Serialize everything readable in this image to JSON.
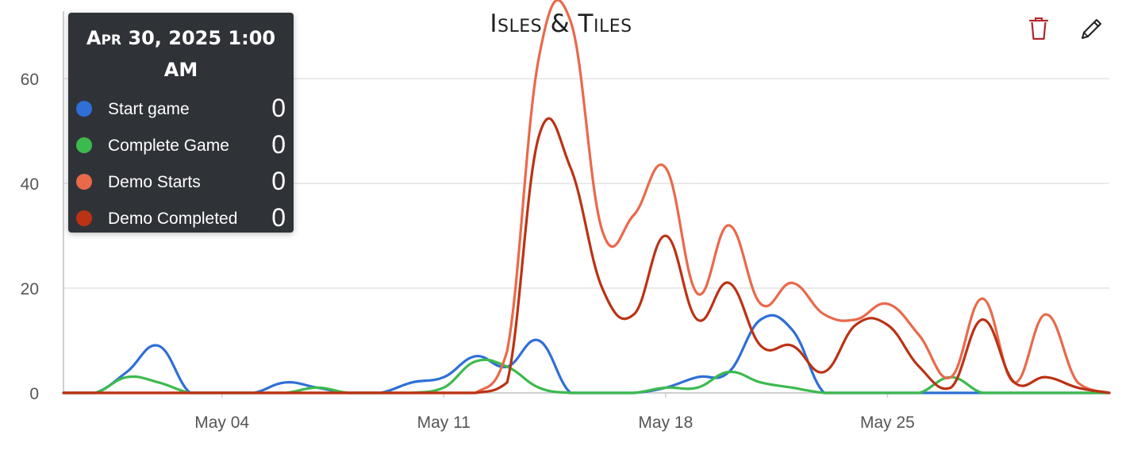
{
  "chart": {
    "title": "Isles & Tiles",
    "toolbar": {
      "delete_icon": "trash-icon",
      "edit_icon": "pencil-icon",
      "delete_color": "#b3262b"
    },
    "tooltip": {
      "title": "Apr 30, 2025 1:00 AM",
      "items": [
        {
          "label": "Start game",
          "value": "0",
          "color": "#2f6fd6"
        },
        {
          "label": "Complete Game",
          "value": "0",
          "color": "#3dba4e"
        },
        {
          "label": "Demo Starts",
          "value": "0",
          "color": "#e9694b"
        },
        {
          "label": "Demo Completed",
          "value": "0",
          "color": "#bb3214"
        }
      ]
    }
  },
  "chart_data": {
    "type": "line",
    "title": "Isles & Tiles",
    "xlabel": "",
    "ylabel": "",
    "x": [
      "2025-04-29",
      "2025-04-30",
      "2025-05-01",
      "2025-05-02",
      "2025-05-03",
      "2025-05-04",
      "2025-05-05",
      "2025-05-06",
      "2025-05-07",
      "2025-05-08",
      "2025-05-09",
      "2025-05-10",
      "2025-05-11",
      "2025-05-12",
      "2025-05-13",
      "2025-05-14",
      "2025-05-15",
      "2025-05-16",
      "2025-05-17",
      "2025-05-18",
      "2025-05-19",
      "2025-05-20",
      "2025-05-21",
      "2025-05-22",
      "2025-05-23",
      "2025-05-24",
      "2025-05-25",
      "2025-05-26",
      "2025-05-27",
      "2025-05-28",
      "2025-05-29",
      "2025-05-30",
      "2025-05-31",
      "2025-06-01"
    ],
    "x_ticks": [
      "May 04",
      "May 11",
      "May 18",
      "May 25"
    ],
    "x_tick_dates": [
      "2025-05-04",
      "2025-05-11",
      "2025-05-18",
      "2025-05-25"
    ],
    "y_ticks": [
      0,
      20,
      40,
      60
    ],
    "ylim": [
      0,
      72
    ],
    "grid": true,
    "legend": "tooltip-top-left",
    "series": [
      {
        "name": "Start game",
        "color": "#2f6fd6",
        "values": [
          0,
          0,
          4,
          9,
          0,
          0,
          0,
          2,
          1,
          0,
          0,
          2,
          3,
          7,
          5,
          10,
          0,
          0,
          0,
          1,
          3,
          4,
          14,
          12,
          0,
          0,
          0,
          0,
          0,
          0,
          0,
          0,
          0,
          0
        ]
      },
      {
        "name": "Complete Game",
        "color": "#3dba4e",
        "values": [
          0,
          0,
          3,
          2,
          0,
          0,
          0,
          0,
          1,
          0,
          0,
          0,
          1,
          6,
          5,
          1,
          0,
          0,
          0,
          1,
          1,
          4,
          2,
          1,
          0,
          0,
          0,
          0,
          3,
          0,
          0,
          0,
          0,
          0
        ]
      },
      {
        "name": "Demo Starts",
        "color": "#e9694b",
        "values": [
          0,
          0,
          0,
          0,
          0,
          0,
          0,
          0,
          0,
          0,
          0,
          0,
          0,
          0,
          8,
          64,
          71,
          31,
          34,
          43,
          19,
          32,
          17,
          21,
          15,
          14,
          17,
          11,
          3,
          18,
          2,
          15,
          2,
          0
        ]
      },
      {
        "name": "Demo Completed",
        "color": "#bb3214",
        "values": [
          0,
          0,
          0,
          0,
          0,
          0,
          0,
          0,
          0,
          0,
          0,
          0,
          0,
          0,
          2,
          49,
          43,
          20,
          15,
          30,
          14,
          21,
          9,
          9,
          4,
          13,
          13,
          5,
          1,
          14,
          2,
          3,
          1,
          0
        ]
      }
    ]
  }
}
